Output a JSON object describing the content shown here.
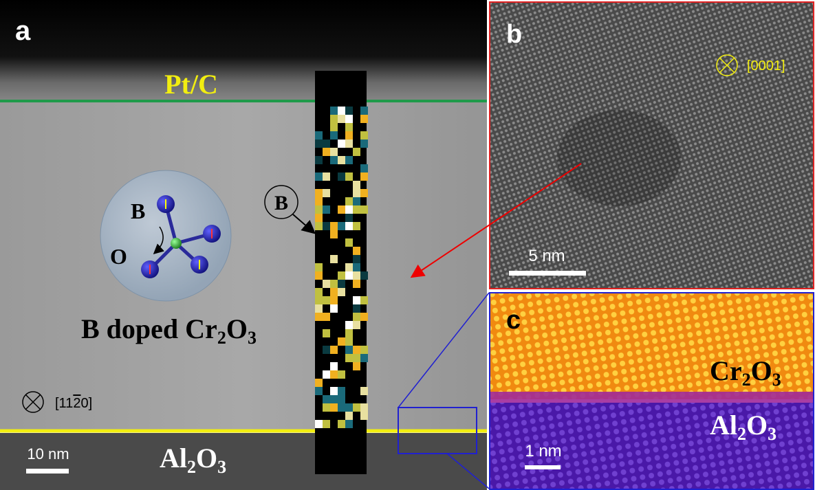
{
  "panel_a": {
    "label": "a",
    "top_layer": "Pt/C",
    "film_label": [
      "B doped Cr",
      "2",
      "O",
      "3"
    ],
    "atom_labels": {
      "boron": "B",
      "oxygen": "O"
    },
    "circled_label": "B",
    "zone_axis": [
      "[11",
      "2",
      "0]"
    ],
    "scale_bar": "10 nm",
    "substrate_label": [
      "Al",
      "2",
      "O",
      "3"
    ]
  },
  "panel_b": {
    "label": "b",
    "zone_axis": "[0001]",
    "scale_bar": "5 nm"
  },
  "panel_c": {
    "label": "c",
    "upper_layer": [
      "Cr",
      "2",
      "O",
      "3"
    ],
    "lower_layer": [
      "Al",
      "2",
      "O",
      "3"
    ],
    "scale_bar": "1 nm"
  }
}
